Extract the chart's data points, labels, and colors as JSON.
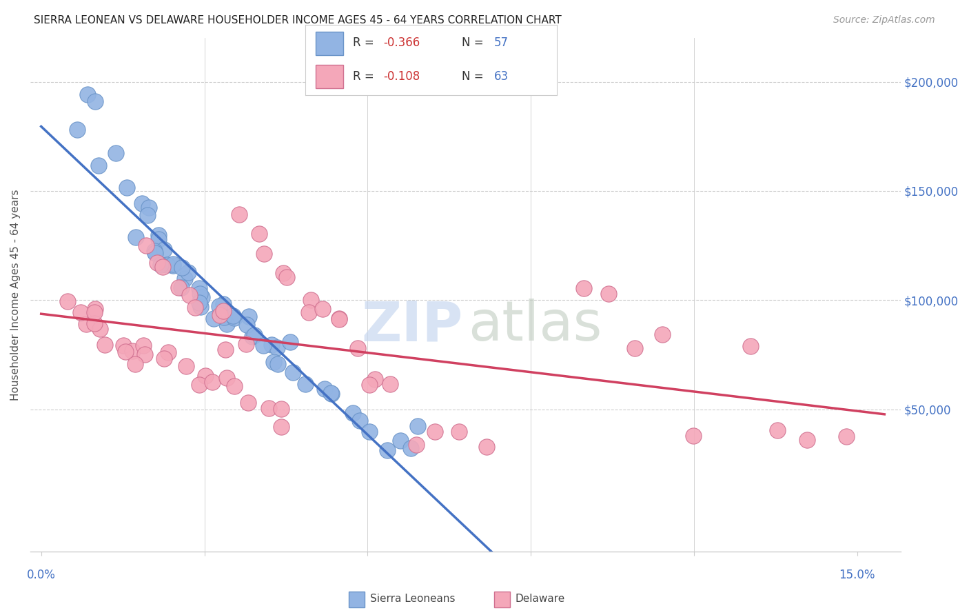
{
  "title": "SIERRA LEONEAN VS DELAWARE HOUSEHOLDER INCOME AGES 45 - 64 YEARS CORRELATION CHART",
  "source": "Source: ZipAtlas.com",
  "ylabel": "Householder Income Ages 45 - 64 years",
  "legend_blue_R": "R = -0.366",
  "legend_blue_N": "N = 57",
  "legend_pink_R": "R = -0.108",
  "legend_pink_N": "N = 63",
  "legend_label_blue": "Sierra Leoneans",
  "legend_label_pink": "Delaware",
  "blue_color": "#92b4e3",
  "pink_color": "#f4a7b9",
  "blue_edge_color": "#6a94c8",
  "pink_edge_color": "#d07090",
  "blue_line_color": "#4472c4",
  "pink_line_color": "#d04060",
  "dash_color": "#bbbbbb",
  "grid_color": "#cccccc",
  "right_tick_color": "#4472c4",
  "title_color": "#222222",
  "source_color": "#999999",
  "ylabel_color": "#555555",
  "watermark_zip_color": "#c8d8f0",
  "watermark_atlas_color": "#c0ccc0",
  "bottom_label_color": "#444444",
  "xlim": [
    -0.002,
    0.158
  ],
  "ylim": [
    -15000,
    220000
  ],
  "xmin": 0.0,
  "xmax": 0.15,
  "yticks": [
    50000,
    100000,
    150000,
    200000
  ],
  "ytick_labels": [
    "$50,000",
    "$100,000",
    "$150,000",
    "$200,000"
  ],
  "xtick_labels_show": [
    "0.0%",
    "15.0%"
  ],
  "marker_size": 280,
  "blue_x": [
    0.008,
    0.01,
    0.006,
    0.009,
    0.014,
    0.016,
    0.017,
    0.019,
    0.02,
    0.021,
    0.022,
    0.023,
    0.024,
    0.025,
    0.026,
    0.027,
    0.028,
    0.029,
    0.03,
    0.031,
    0.032,
    0.033,
    0.034,
    0.035,
    0.036,
    0.038,
    0.04,
    0.042,
    0.044,
    0.046,
    0.018,
    0.019,
    0.021,
    0.023,
    0.025,
    0.027,
    0.029,
    0.031,
    0.033,
    0.035,
    0.037,
    0.039,
    0.041,
    0.043,
    0.045,
    0.047,
    0.049,
    0.051,
    0.053,
    0.055,
    0.057,
    0.059,
    0.061,
    0.063,
    0.065,
    0.067,
    0.07
  ],
  "blue_y": [
    195000,
    190000,
    175000,
    163000,
    168000,
    155000,
    148000,
    140000,
    135000,
    130000,
    125000,
    122000,
    118000,
    115000,
    112000,
    110000,
    108000,
    105000,
    103000,
    101000,
    99000,
    97000,
    95000,
    93000,
    91000,
    88000,
    85000,
    82000,
    80000,
    78000,
    128000,
    124000,
    120000,
    116000,
    112000,
    108000,
    104000,
    100000,
    96000,
    92000,
    88000,
    84000,
    80000,
    76000,
    72000,
    68000,
    64000,
    60000,
    56000,
    52000,
    48000,
    44000,
    40000,
    37000,
    36000,
    32000,
    35000
  ],
  "pink_x": [
    0.005,
    0.008,
    0.01,
    0.012,
    0.014,
    0.016,
    0.018,
    0.02,
    0.022,
    0.024,
    0.026,
    0.028,
    0.03,
    0.032,
    0.034,
    0.036,
    0.038,
    0.04,
    0.042,
    0.044,
    0.046,
    0.048,
    0.05,
    0.052,
    0.054,
    0.056,
    0.058,
    0.06,
    0.062,
    0.064,
    0.007,
    0.009,
    0.011,
    0.013,
    0.015,
    0.017,
    0.019,
    0.021,
    0.023,
    0.025,
    0.027,
    0.029,
    0.031,
    0.033,
    0.035,
    0.037,
    0.039,
    0.041,
    0.043,
    0.045,
    0.068,
    0.072,
    0.076,
    0.08,
    0.1,
    0.105,
    0.11,
    0.115,
    0.12,
    0.13,
    0.135,
    0.14,
    0.148
  ],
  "pink_y": [
    95000,
    90000,
    88000,
    85000,
    82000,
    80000,
    78000,
    76000,
    74000,
    72000,
    70000,
    68000,
    66000,
    64000,
    62000,
    60000,
    143000,
    130000,
    120000,
    115000,
    110000,
    100000,
    98000,
    95000,
    90000,
    88000,
    75000,
    68000,
    64000,
    60000,
    93000,
    88000,
    83000,
    78000,
    73000,
    68000,
    123000,
    118000,
    113000,
    108000,
    103000,
    98000,
    93000,
    88000,
    83000,
    78000,
    58000,
    52000,
    47000,
    42000,
    37000,
    42000,
    38000,
    35000,
    105000,
    103000,
    80000,
    78000,
    36000,
    85000,
    40000,
    38000,
    35000
  ]
}
